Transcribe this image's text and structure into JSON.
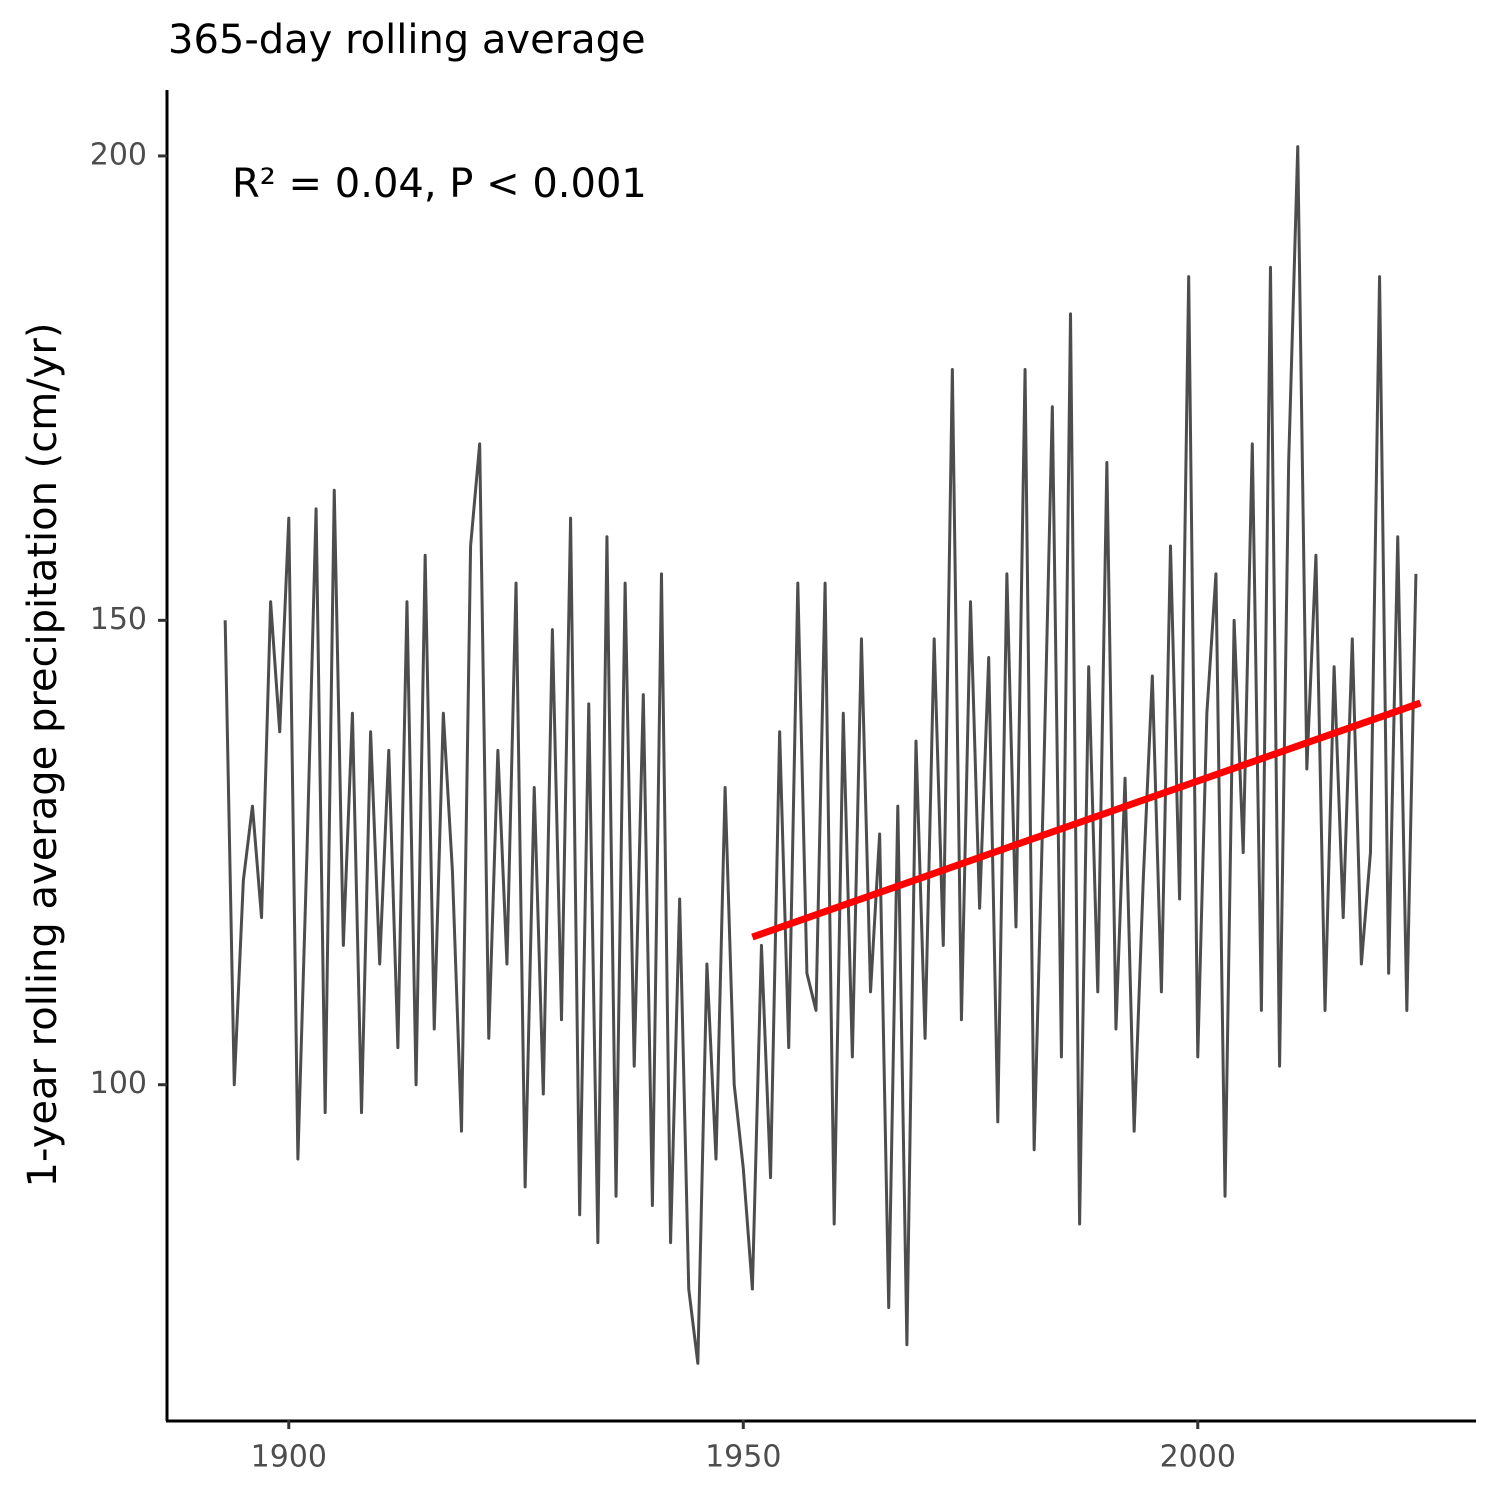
{
  "chart_data": {
    "type": "line",
    "title": "365-day rolling average",
    "y_label": "1-year rolling average precipitation (cm/yr)",
    "annotation": "R² = 0.04, P < 0.001",
    "xlim": [
      1886.6,
      2030.5
    ],
    "ylim": [
      63.9,
      207.1
    ],
    "xticks": [
      1900,
      1950,
      2000
    ],
    "yticks": [
      100,
      150,
      200
    ],
    "grid": false,
    "series": [
      {
        "color": "#4d4d4d",
        "x": [
          1893,
          1894,
          1895,
          1896,
          1897,
          1898,
          1899,
          1900,
          1901,
          1902,
          1903,
          1904,
          1905,
          1906,
          1907,
          1908,
          1909,
          1910,
          1911,
          1912,
          1913,
          1914,
          1915,
          1916,
          1917,
          1918,
          1919,
          1920,
          1921,
          1922,
          1923,
          1924,
          1925,
          1926,
          1927,
          1928,
          1929,
          1930,
          1931,
          1932,
          1933,
          1934,
          1935,
          1936,
          1937,
          1938,
          1939,
          1940,
          1941,
          1942,
          1943,
          1944,
          1945,
          1946,
          1947,
          1948,
          1949,
          1950,
          1951,
          1952,
          1953,
          1954,
          1955,
          1956,
          1957,
          1958,
          1959,
          1960,
          1961,
          1962,
          1963,
          1964,
          1965,
          1966,
          1967,
          1968,
          1969,
          1970,
          1971,
          1972,
          1973,
          1974,
          1975,
          1976,
          1977,
          1978,
          1979,
          1980,
          1981,
          1982,
          1983,
          1984,
          1985,
          1986,
          1987,
          1988,
          1989,
          1990,
          1991,
          1992,
          1993,
          1994,
          1995,
          1996,
          1997,
          1998,
          1999,
          2000,
          2001,
          2002,
          2003,
          2004,
          2005,
          2006,
          2007,
          2008,
          2009,
          2010,
          2011,
          2012,
          2013,
          2014,
          2015,
          2016,
          2017,
          2018,
          2019,
          2020,
          2021,
          2022,
          2023,
          2024
        ],
        "values": [
          150,
          100,
          122,
          130,
          118,
          152,
          138,
          161,
          92,
          125,
          162,
          97,
          164,
          115,
          140,
          97,
          138,
          113,
          136,
          104,
          152,
          100,
          157,
          106,
          140,
          123,
          95,
          158,
          169,
          105,
          136,
          113,
          154,
          89,
          132,
          99,
          149,
          107,
          161,
          86,
          141,
          83,
          159,
          88,
          154,
          102,
          142,
          87,
          155,
          83,
          120,
          78,
          70,
          113,
          92,
          132,
          100,
          91,
          78,
          115,
          90,
          138,
          104,
          154,
          112,
          108,
          154,
          85,
          140,
          103,
          148,
          110,
          127,
          76,
          130,
          72,
          137,
          105,
          148,
          115,
          177,
          107,
          152,
          119,
          146,
          96,
          155,
          117,
          177,
          93,
          131,
          173,
          103,
          183,
          85,
          145,
          110,
          167,
          106,
          133,
          95,
          122,
          144,
          110,
          158,
          120,
          187,
          103,
          140,
          155,
          88,
          150,
          125,
          169,
          108,
          188,
          102,
          167,
          201,
          134,
          157,
          108,
          145,
          118,
          148,
          113,
          125,
          187,
          112,
          159,
          108,
          155
        ]
      },
      {
        "color": "#ff0000",
        "x": [
          1951,
          2024.5
        ],
        "values": [
          115.9,
          141.1
        ]
      }
    ]
  }
}
